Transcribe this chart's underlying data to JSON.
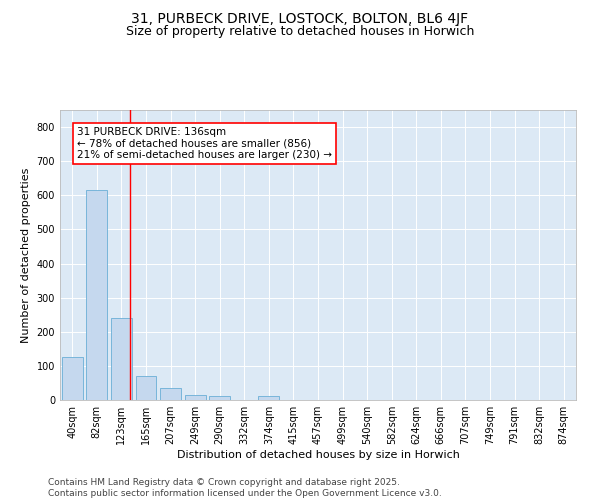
{
  "title": "31, PURBECK DRIVE, LOSTOCK, BOLTON, BL6 4JF",
  "subtitle": "Size of property relative to detached houses in Horwich",
  "xlabel": "Distribution of detached houses by size in Horwich",
  "ylabel": "Number of detached properties",
  "bin_labels": [
    "40sqm",
    "82sqm",
    "123sqm",
    "165sqm",
    "207sqm",
    "249sqm",
    "290sqm",
    "332sqm",
    "374sqm",
    "415sqm",
    "457sqm",
    "499sqm",
    "540sqm",
    "582sqm",
    "624sqm",
    "666sqm",
    "707sqm",
    "749sqm",
    "791sqm",
    "832sqm",
    "874sqm"
  ],
  "bar_heights": [
    125,
    615,
    240,
    70,
    35,
    15,
    12,
    0,
    12,
    0,
    0,
    0,
    0,
    0,
    0,
    0,
    0,
    0,
    0,
    0,
    0
  ],
  "bar_color": "#c5d8ee",
  "bar_edge_color": "#6aaed6",
  "annotation_line1": "31 PURBECK DRIVE: 136sqm",
  "annotation_line2": "← 78% of detached houses are smaller (856)",
  "annotation_line3": "21% of semi-detached houses are larger (230) →",
  "ylim": [
    0,
    850
  ],
  "yticks": [
    0,
    100,
    200,
    300,
    400,
    500,
    600,
    700,
    800
  ],
  "footer1": "Contains HM Land Registry data © Crown copyright and database right 2025.",
  "footer2": "Contains public sector information licensed under the Open Government Licence v3.0.",
  "fig_bg_color": "#ffffff",
  "plot_bg_color": "#dce9f5",
  "title_fontsize": 10,
  "subtitle_fontsize": 9,
  "axis_label_fontsize": 8,
  "tick_fontsize": 7,
  "footer_fontsize": 6.5,
  "annotation_fontsize": 7.5,
  "red_line_x": 2.34
}
